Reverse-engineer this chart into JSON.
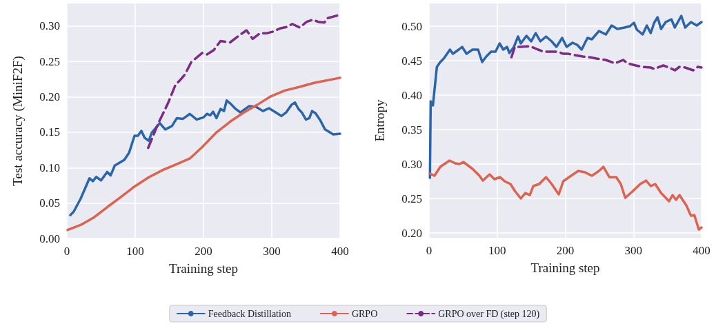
{
  "chart_data": [
    {
      "type": "line",
      "xlabel": "Training step",
      "ylabel": "Test accuracy (MiniF2F)",
      "xlim": [
        0,
        400
      ],
      "xticks": [
        0,
        100,
        200,
        300,
        400
      ],
      "ylim": [
        0,
        0.332
      ],
      "yticks": [
        {
          "value": 0,
          "label": "0.00"
        },
        {
          "value": 0.05,
          "label": "0.05"
        },
        {
          "value": 0.1,
          "label": "0.10"
        },
        {
          "value": 0.15,
          "label": "0.15"
        },
        {
          "value": 0.2,
          "label": "0.20"
        },
        {
          "value": 0.25,
          "label": "0.25"
        },
        {
          "value": 0.3,
          "label": "0.30"
        }
      ],
      "grid": true,
      "legend": "bottom",
      "marker": "none",
      "series": [
        {
          "name": "Feedback Distillation",
          "color": "#2a65ab",
          "line_style": "solid",
          "x": [
            5,
            10,
            20,
            33,
            38,
            43,
            50,
            59,
            64,
            70,
            84,
            91,
            99,
            104,
            109,
            114,
            120,
            124,
            136,
            144,
            154,
            161,
            170,
            180,
            190,
            200,
            205,
            210,
            214,
            219,
            225,
            230,
            234,
            240,
            246,
            254,
            267,
            277,
            287,
            296,
            306,
            314,
            321,
            329,
            334,
            339,
            344,
            350,
            355,
            359,
            364,
            371,
            378,
            390,
            400
          ],
          "values": [
            0.033,
            0.038,
            0.056,
            0.085,
            0.081,
            0.087,
            0.082,
            0.094,
            0.089,
            0.103,
            0.111,
            0.121,
            0.145,
            0.145,
            0.152,
            0.142,
            0.138,
            0.149,
            0.163,
            0.154,
            0.159,
            0.17,
            0.169,
            0.176,
            0.168,
            0.171,
            0.176,
            0.174,
            0.179,
            0.17,
            0.183,
            0.18,
            0.195,
            0.19,
            0.184,
            0.178,
            0.187,
            0.186,
            0.18,
            0.184,
            0.178,
            0.173,
            0.178,
            0.189,
            0.192,
            0.183,
            0.178,
            0.168,
            0.17,
            0.18,
            0.177,
            0.167,
            0.154,
            0.147,
            0.148
          ]
        },
        {
          "name": "GRPO",
          "color": "#dc6350",
          "line_style": "solid",
          "x": [
            1,
            20,
            40,
            60,
            77,
            97,
            119,
            141,
            161,
            180,
            198,
            218,
            239,
            259,
            279,
            299,
            319,
            340,
            363,
            400
          ],
          "values": [
            0.012,
            0.019,
            0.03,
            0.045,
            0.057,
            0.072,
            0.086,
            0.097,
            0.105,
            0.113,
            0.129,
            0.149,
            0.165,
            0.178,
            0.189,
            0.201,
            0.209,
            0.214,
            0.22,
            0.227
          ]
        },
        {
          "name": "GRPO over FD (step 120)",
          "color": "#7b2d84",
          "line_style": "dashed",
          "x": [
            119,
            134,
            148,
            159,
            167,
            173,
            182,
            198,
            205,
            215,
            225,
            239,
            254,
            263,
            272,
            283,
            293,
            301,
            313,
            323,
            330,
            341,
            351,
            360,
            368,
            377,
            381,
            400
          ],
          "values": [
            0.128,
            0.163,
            0.191,
            0.217,
            0.225,
            0.232,
            0.249,
            0.262,
            0.26,
            0.266,
            0.279,
            0.277,
            0.288,
            0.294,
            0.282,
            0.29,
            0.29,
            0.292,
            0.297,
            0.299,
            0.303,
            0.298,
            0.306,
            0.309,
            0.306,
            0.305,
            0.311,
            0.316
          ]
        }
      ]
    },
    {
      "type": "line",
      "xlabel": "Training step",
      "ylabel": "Entropy",
      "xlim": [
        0,
        400
      ],
      "xticks": [
        0,
        100,
        200,
        300,
        400
      ],
      "ylim": [
        0.193,
        0.533
      ],
      "yticks": [
        {
          "value": 0.2,
          "label": "0.20"
        },
        {
          "value": 0.25,
          "label": "0.25"
        },
        {
          "value": 0.3,
          "label": "0.30"
        },
        {
          "value": 0.35,
          "label": "0.35"
        },
        {
          "value": 0.4,
          "label": "0.40"
        },
        {
          "value": 0.45,
          "label": "0.45"
        },
        {
          "value": 0.5,
          "label": "0.50"
        }
      ],
      "grid": true,
      "marker": "none",
      "series": [
        {
          "color": "#2a65ab",
          "line_style": "solid",
          "x": [
            1.3,
            2.4,
            5.7,
            7,
            11.5,
            16.5,
            21.6,
            30.7,
            35,
            43.5,
            48.6,
            55,
            63.8,
            72,
            78,
            84,
            91,
            97.6,
            103.6,
            109,
            114.5,
            118,
            124.6,
            130.6,
            134.7,
            143,
            150,
            156.6,
            163.4,
            171.8,
            180,
            187,
            195.4,
            202,
            210.6,
            217.4,
            224,
            232.6,
            239,
            249.5,
            259.6,
            268,
            276.5,
            286.6,
            295,
            300.8,
            305,
            313.6,
            319.7,
            325.4,
            330.5,
            335.5,
            340.6,
            347.4,
            355.8,
            360.8,
            370.3,
            376,
            384.5,
            393,
            400
          ],
          "values": [
            0.28,
            0.391,
            0.385,
            0.398,
            0.441,
            0.448,
            0.453,
            0.466,
            0.46,
            0.466,
            0.47,
            0.46,
            0.466,
            0.466,
            0.448,
            0.456,
            0.463,
            0.463,
            0.475,
            0.466,
            0.47,
            0.461,
            0.47,
            0.485,
            0.475,
            0.486,
            0.478,
            0.49,
            0.478,
            0.485,
            0.478,
            0.47,
            0.483,
            0.47,
            0.476,
            0.473,
            0.466,
            0.483,
            0.481,
            0.493,
            0.488,
            0.501,
            0.496,
            0.498,
            0.5,
            0.505,
            0.495,
            0.488,
            0.501,
            0.49,
            0.505,
            0.513,
            0.496,
            0.506,
            0.51,
            0.498,
            0.515,
            0.498,
            0.506,
            0.501,
            0.506
          ]
        },
        {
          "color": "#dc6350",
          "line_style": "solid",
          "x": [
            1.3,
            8,
            16.5,
            30,
            38.5,
            45,
            50.3,
            63.8,
            74,
            79,
            89,
            96,
            104.3,
            111,
            119.5,
            126,
            134.7,
            141.4,
            148,
            153,
            161.7,
            171.8,
            180,
            190.4,
            197,
            205.6,
            219,
            229,
            239,
            249.5,
            256,
            264.6,
            274.8,
            281.5,
            288,
            298.4,
            310,
            318.7,
            325.4,
            332,
            340.6,
            352.4,
            357.5,
            362.6,
            367.6,
            377.7,
            384.5,
            389.5,
            396,
            400
          ],
          "values": [
            0.286,
            0.283,
            0.296,
            0.305,
            0.301,
            0.3,
            0.303,
            0.293,
            0.283,
            0.276,
            0.285,
            0.278,
            0.281,
            0.275,
            0.271,
            0.261,
            0.25,
            0.258,
            0.255,
            0.268,
            0.271,
            0.281,
            0.271,
            0.256,
            0.275,
            0.281,
            0.29,
            0.288,
            0.283,
            0.29,
            0.296,
            0.281,
            0.281,
            0.271,
            0.251,
            0.26,
            0.271,
            0.276,
            0.268,
            0.271,
            0.258,
            0.246,
            0.255,
            0.248,
            0.255,
            0.24,
            0.225,
            0.226,
            0.205,
            0.208
          ]
        },
        {
          "color": "#7b2d84",
          "line_style": "dashed",
          "x": [
            121,
            126,
            134.7,
            148,
            160,
            168.4,
            180,
            188.7,
            197,
            204,
            214,
            225.8,
            236,
            246,
            259.6,
            273,
            285,
            291.6,
            303.5,
            313.6,
            325.4,
            330.5,
            344,
            352,
            361,
            367.6,
            376,
            387.8,
            394.6,
            400
          ],
          "values": [
            0.455,
            0.47,
            0.47,
            0.471,
            0.466,
            0.463,
            0.463,
            0.463,
            0.46,
            0.46,
            0.458,
            0.456,
            0.455,
            0.453,
            0.451,
            0.446,
            0.451,
            0.446,
            0.443,
            0.441,
            0.44,
            0.438,
            0.443,
            0.44,
            0.436,
            0.441,
            0.44,
            0.436,
            0.441,
            0.44
          ]
        }
      ]
    }
  ]
}
